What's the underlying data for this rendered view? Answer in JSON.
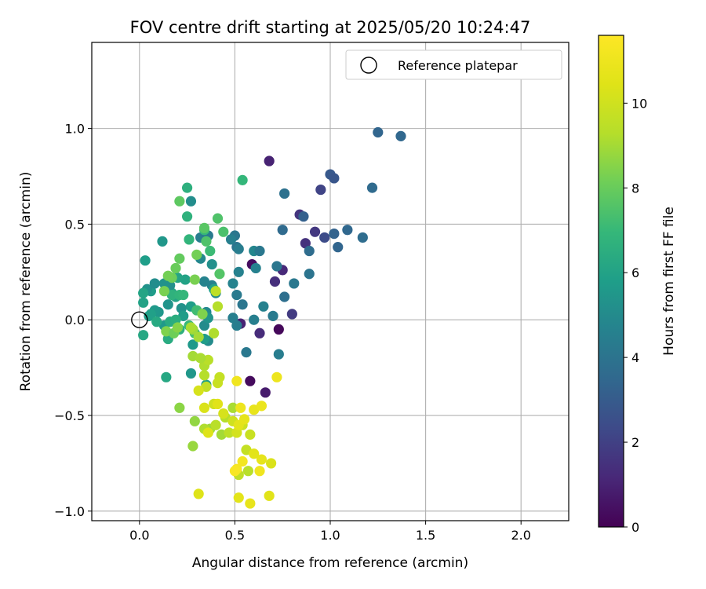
{
  "chart_data": {
    "type": "scatter",
    "title": "FOV centre drift starting at 2025/05/20 10:24:47",
    "xlabel": "Angular distance from reference (arcmin)",
    "ylabel": "Rotation from reference (arcmin)",
    "xlim": [
      -0.25,
      2.25
    ],
    "ylim": [
      -1.05,
      1.45
    ],
    "xticks": [
      0.0,
      0.5,
      1.0,
      1.5,
      2.0
    ],
    "xtick_labels": [
      "0.0",
      "0.5",
      "1.0",
      "1.5",
      "2.0"
    ],
    "yticks": [
      -1.0,
      -0.5,
      0.0,
      0.5,
      1.0
    ],
    "ytick_labels": [
      "−1.0",
      "−0.5",
      "0.0",
      "0.5",
      "1.0"
    ],
    "grid": true,
    "legend": {
      "placement": "top-right",
      "entries": [
        "Reference platepar"
      ]
    },
    "reference_point": {
      "x": 0.0,
      "y": 0.0,
      "label": "Reference platepar"
    },
    "colorbar": {
      "label": "Hours from first FF file",
      "range": [
        0,
        11.6
      ],
      "ticks": [
        0,
        2,
        4,
        6,
        8,
        10
      ],
      "tick_labels": [
        "0",
        "2",
        "4",
        "6",
        "8",
        "10"
      ],
      "colormap": "viridis"
    },
    "points": [
      {
        "x": 0.58,
        "y": -0.32,
        "h": 0.3
      },
      {
        "x": 0.73,
        "y": -0.05,
        "h": 0.2
      },
      {
        "x": 0.66,
        "y": -0.38,
        "h": 0.8
      },
      {
        "x": 0.59,
        "y": 0.29,
        "h": 0.4
      },
      {
        "x": 0.75,
        "y": 0.26,
        "h": 1.2
      },
      {
        "x": 0.53,
        "y": -0.02,
        "h": 1.0
      },
      {
        "x": 0.63,
        "y": -0.07,
        "h": 1.3
      },
      {
        "x": 0.71,
        "y": 0.2,
        "h": 1.4
      },
      {
        "x": 0.8,
        "y": 0.03,
        "h": 1.8
      },
      {
        "x": 0.68,
        "y": 0.83,
        "h": 1.0
      },
      {
        "x": 0.87,
        "y": 0.4,
        "h": 1.5
      },
      {
        "x": 0.92,
        "y": 0.46,
        "h": 1.7
      },
      {
        "x": 0.84,
        "y": 0.55,
        "h": 1.6
      },
      {
        "x": 0.95,
        "y": 0.68,
        "h": 2.1
      },
      {
        "x": 0.97,
        "y": 0.43,
        "h": 2.4
      },
      {
        "x": 1.0,
        "y": 0.76,
        "h": 2.9
      },
      {
        "x": 1.02,
        "y": 0.74,
        "h": 2.8
      },
      {
        "x": 1.25,
        "y": 0.98,
        "h": 3.4
      },
      {
        "x": 1.37,
        "y": 0.96,
        "h": 3.5
      },
      {
        "x": 1.22,
        "y": 0.69,
        "h": 3.6
      },
      {
        "x": 1.02,
        "y": 0.45,
        "h": 3.3
      },
      {
        "x": 1.09,
        "y": 0.47,
        "h": 3.5
      },
      {
        "x": 1.17,
        "y": 0.43,
        "h": 3.7
      },
      {
        "x": 1.04,
        "y": 0.38,
        "h": 3.4
      },
      {
        "x": 0.86,
        "y": 0.54,
        "h": 3.2
      },
      {
        "x": 0.76,
        "y": 0.66,
        "h": 3.9
      },
      {
        "x": 0.75,
        "y": 0.47,
        "h": 3.6
      },
      {
        "x": 0.89,
        "y": 0.36,
        "h": 3.7
      },
      {
        "x": 0.89,
        "y": 0.24,
        "h": 4.0
      },
      {
        "x": 0.81,
        "y": 0.19,
        "h": 4.2
      },
      {
        "x": 0.72,
        "y": 0.28,
        "h": 4.1
      },
      {
        "x": 0.76,
        "y": 0.12,
        "h": 3.8
      },
      {
        "x": 0.7,
        "y": 0.02,
        "h": 4.3
      },
      {
        "x": 0.73,
        "y": -0.18,
        "h": 4.4
      },
      {
        "x": 0.65,
        "y": 0.07,
        "h": 4.6
      },
      {
        "x": 0.6,
        "y": 0.0,
        "h": 4.5
      },
      {
        "x": 0.56,
        "y": -0.17,
        "h": 4.2
      },
      {
        "x": 0.54,
        "y": 0.08,
        "h": 4.1
      },
      {
        "x": 0.51,
        "y": 0.13,
        "h": 4.3
      },
      {
        "x": 0.49,
        "y": 0.01,
        "h": 4.5
      },
      {
        "x": 0.51,
        "y": -0.03,
        "h": 4.4
      },
      {
        "x": 0.52,
        "y": 0.25,
        "h": 4.6
      },
      {
        "x": 0.49,
        "y": 0.19,
        "h": 4.7
      },
      {
        "x": 0.6,
        "y": 0.36,
        "h": 4.8
      },
      {
        "x": 0.63,
        "y": 0.36,
        "h": 4.2
      },
      {
        "x": 0.61,
        "y": 0.27,
        "h": 4.6
      },
      {
        "x": 0.51,
        "y": 0.38,
        "h": 4.0
      },
      {
        "x": 0.5,
        "y": 0.44,
        "h": 4.1
      },
      {
        "x": 0.52,
        "y": 0.37,
        "h": 4.4
      },
      {
        "x": 0.48,
        "y": 0.42,
        "h": 4.5
      },
      {
        "x": 0.38,
        "y": 0.18,
        "h": 4.6
      },
      {
        "x": 0.34,
        "y": 0.2,
        "h": 4.7
      },
      {
        "x": 0.35,
        "y": 0.04,
        "h": 4.9
      },
      {
        "x": 0.34,
        "y": -0.03,
        "h": 5.0
      },
      {
        "x": 0.36,
        "y": -0.11,
        "h": 5.0
      },
      {
        "x": 0.32,
        "y": 0.32,
        "h": 4.9
      },
      {
        "x": 0.36,
        "y": 0.44,
        "h": 4.3
      },
      {
        "x": 0.32,
        "y": 0.43,
        "h": 4.4
      },
      {
        "x": 0.38,
        "y": 0.29,
        "h": 5.2
      },
      {
        "x": 0.36,
        "y": 0.01,
        "h": 5.4
      },
      {
        "x": 0.27,
        "y": 0.62,
        "h": 5.1
      },
      {
        "x": 0.27,
        "y": -0.28,
        "h": 5.5
      },
      {
        "x": 0.28,
        "y": -0.13,
        "h": 5.6
      },
      {
        "x": 0.34,
        "y": -0.1,
        "h": 5.7
      },
      {
        "x": 0.27,
        "y": 0.07,
        "h": 5.8
      },
      {
        "x": 0.4,
        "y": 0.14,
        "h": 5.0
      },
      {
        "x": 0.39,
        "y": 0.16,
        "h": 5.9
      },
      {
        "x": 0.35,
        "y": -0.34,
        "h": 5.8
      },
      {
        "x": 0.24,
        "y": 0.21,
        "h": 6.0
      },
      {
        "x": 0.22,
        "y": 0.06,
        "h": 5.3
      },
      {
        "x": 0.23,
        "y": 0.02,
        "h": 5.7
      },
      {
        "x": 0.19,
        "y": 0.12,
        "h": 6.0
      },
      {
        "x": 0.2,
        "y": 0.22,
        "h": 6.1
      },
      {
        "x": 0.17,
        "y": 0.14,
        "h": 6.2
      },
      {
        "x": 0.16,
        "y": 0.18,
        "h": 5.2
      },
      {
        "x": 0.15,
        "y": 0.08,
        "h": 5.4
      },
      {
        "x": 0.13,
        "y": 0.19,
        "h": 5.3
      },
      {
        "x": 0.12,
        "y": 0.41,
        "h": 5.5
      },
      {
        "x": 0.14,
        "y": -0.3,
        "h": 6.2
      },
      {
        "x": 0.15,
        "y": -0.1,
        "h": 6.4
      },
      {
        "x": 0.13,
        "y": -0.03,
        "h": 5.6
      },
      {
        "x": 0.1,
        "y": 0.04,
        "h": 5.5
      },
      {
        "x": 0.08,
        "y": 0.05,
        "h": 5.6
      },
      {
        "x": 0.06,
        "y": 0.15,
        "h": 5.7
      },
      {
        "x": 0.04,
        "y": 0.16,
        "h": 5.3
      },
      {
        "x": 0.03,
        "y": 0.31,
        "h": 5.8
      },
      {
        "x": 0.02,
        "y": 0.14,
        "h": 6.1
      },
      {
        "x": 0.02,
        "y": 0.09,
        "h": 6.0
      },
      {
        "x": 0.05,
        "y": 0.02,
        "h": 5.8
      },
      {
        "x": 0.06,
        "y": 0.03,
        "h": 5.9
      },
      {
        "x": 0.02,
        "y": -0.08,
        "h": 6.2
      },
      {
        "x": 0.08,
        "y": 0.19,
        "h": 5.1
      },
      {
        "x": 0.09,
        "y": -0.01,
        "h": 6.3
      },
      {
        "x": 0.16,
        "y": -0.01,
        "h": 6.4
      },
      {
        "x": 0.19,
        "y": 0.0,
        "h": 6.5
      },
      {
        "x": 0.21,
        "y": -0.05,
        "h": 6.6
      },
      {
        "x": 0.17,
        "y": 0.13,
        "h": 6.7
      },
      {
        "x": 0.21,
        "y": 0.13,
        "h": 6.8
      },
      {
        "x": 0.23,
        "y": 0.13,
        "h": 6.9
      },
      {
        "x": 0.25,
        "y": 0.69,
        "h": 6.6
      },
      {
        "x": 0.25,
        "y": 0.54,
        "h": 6.7
      },
      {
        "x": 0.26,
        "y": 0.42,
        "h": 6.8
      },
      {
        "x": 0.54,
        "y": 0.73,
        "h": 6.9
      },
      {
        "x": 0.34,
        "y": 0.47,
        "h": 7.0
      },
      {
        "x": 0.37,
        "y": 0.36,
        "h": 7.1
      },
      {
        "x": 0.3,
        "y": 0.05,
        "h": 7.2
      },
      {
        "x": 0.26,
        "y": -0.03,
        "h": 7.0
      },
      {
        "x": 0.29,
        "y": -0.07,
        "h": 7.3
      },
      {
        "x": 0.44,
        "y": 0.46,
        "h": 7.4
      },
      {
        "x": 0.41,
        "y": 0.53,
        "h": 7.5
      },
      {
        "x": 0.42,
        "y": 0.24,
        "h": 7.6
      },
      {
        "x": 0.34,
        "y": 0.48,
        "h": 7.7
      },
      {
        "x": 0.35,
        "y": 0.41,
        "h": 7.5
      },
      {
        "x": 0.21,
        "y": 0.62,
        "h": 7.8
      },
      {
        "x": 0.21,
        "y": 0.32,
        "h": 7.9
      },
      {
        "x": 0.19,
        "y": 0.27,
        "h": 8.0
      },
      {
        "x": 0.17,
        "y": 0.22,
        "h": 8.1
      },
      {
        "x": 0.15,
        "y": 0.23,
        "h": 8.2
      },
      {
        "x": 0.13,
        "y": 0.15,
        "h": 8.3
      },
      {
        "x": 0.14,
        "y": -0.06,
        "h": 8.4
      },
      {
        "x": 0.18,
        "y": -0.07,
        "h": 8.1
      },
      {
        "x": 0.2,
        "y": -0.04,
        "h": 8.5
      },
      {
        "x": 0.21,
        "y": -0.46,
        "h": 8.6
      },
      {
        "x": 0.29,
        "y": -0.53,
        "h": 8.7
      },
      {
        "x": 0.28,
        "y": -0.66,
        "h": 8.8
      },
      {
        "x": 0.29,
        "y": 0.21,
        "h": 8.3
      },
      {
        "x": 0.3,
        "y": 0.34,
        "h": 8.2
      },
      {
        "x": 0.33,
        "y": 0.03,
        "h": 8.4
      },
      {
        "x": 0.28,
        "y": -0.05,
        "h": 8.9
      },
      {
        "x": 0.31,
        "y": -0.09,
        "h": 9.0
      },
      {
        "x": 0.27,
        "y": -0.04,
        "h": 9.1
      },
      {
        "x": 0.34,
        "y": -0.24,
        "h": 9.2
      },
      {
        "x": 0.34,
        "y": -0.29,
        "h": 9.3
      },
      {
        "x": 0.36,
        "y": -0.21,
        "h": 9.4
      },
      {
        "x": 0.28,
        "y": -0.19,
        "h": 9.0
      },
      {
        "x": 0.32,
        "y": -0.2,
        "h": 9.1
      },
      {
        "x": 0.39,
        "y": -0.07,
        "h": 9.2
      },
      {
        "x": 0.41,
        "y": 0.07,
        "h": 9.3
      },
      {
        "x": 0.4,
        "y": 0.15,
        "h": 9.5
      },
      {
        "x": 0.35,
        "y": -0.35,
        "h": 9.6
      },
      {
        "x": 0.42,
        "y": -0.3,
        "h": 9.7
      },
      {
        "x": 0.41,
        "y": -0.33,
        "h": 9.8
      },
      {
        "x": 0.37,
        "y": -0.57,
        "h": 8.9
      },
      {
        "x": 0.34,
        "y": -0.57,
        "h": 9.2
      },
      {
        "x": 0.4,
        "y": -0.55,
        "h": 9.4
      },
      {
        "x": 0.43,
        "y": -0.6,
        "h": 9.0
      },
      {
        "x": 0.45,
        "y": -0.51,
        "h": 9.3
      },
      {
        "x": 0.47,
        "y": -0.59,
        "h": 9.5
      },
      {
        "x": 0.49,
        "y": -0.46,
        "h": 9.1
      },
      {
        "x": 0.52,
        "y": -0.81,
        "h": 9.6
      },
      {
        "x": 0.57,
        "y": -0.79,
        "h": 9.4
      },
      {
        "x": 0.56,
        "y": -0.68,
        "h": 9.7
      },
      {
        "x": 0.58,
        "y": -0.6,
        "h": 9.8
      },
      {
        "x": 0.54,
        "y": -0.55,
        "h": 9.9
      },
      {
        "x": 0.49,
        "y": -0.53,
        "h": 10.0
      },
      {
        "x": 0.51,
        "y": -0.59,
        "h": 10.1
      },
      {
        "x": 0.31,
        "y": -0.37,
        "h": 10.2
      },
      {
        "x": 0.39,
        "y": -0.44,
        "h": 10.0
      },
      {
        "x": 0.34,
        "y": -0.46,
        "h": 10.3
      },
      {
        "x": 0.36,
        "y": -0.59,
        "h": 10.4
      },
      {
        "x": 0.41,
        "y": -0.44,
        "h": 10.5
      },
      {
        "x": 0.44,
        "y": -0.49,
        "h": 10.2
      },
      {
        "x": 0.52,
        "y": -0.55,
        "h": 10.6
      },
      {
        "x": 0.55,
        "y": -0.52,
        "h": 10.7
      },
      {
        "x": 0.6,
        "y": -0.47,
        "h": 10.8
      },
      {
        "x": 0.64,
        "y": -0.45,
        "h": 10.9
      },
      {
        "x": 0.53,
        "y": -0.46,
        "h": 11.0
      },
      {
        "x": 0.51,
        "y": -0.32,
        "h": 11.1
      },
      {
        "x": 0.72,
        "y": -0.3,
        "h": 11.0
      },
      {
        "x": 0.69,
        "y": -0.75,
        "h": 10.3
      },
      {
        "x": 0.64,
        "y": -0.73,
        "h": 10.7
      },
      {
        "x": 0.6,
        "y": -0.7,
        "h": 10.6
      },
      {
        "x": 0.54,
        "y": -0.74,
        "h": 11.2
      },
      {
        "x": 0.51,
        "y": -0.78,
        "h": 11.3
      },
      {
        "x": 0.5,
        "y": -0.79,
        "h": 11.4
      },
      {
        "x": 0.63,
        "y": -0.79,
        "h": 11.1
      },
      {
        "x": 0.31,
        "y": -0.91,
        "h": 10.4
      },
      {
        "x": 0.52,
        "y": -0.93,
        "h": 10.6
      },
      {
        "x": 0.58,
        "y": -0.96,
        "h": 10.8
      },
      {
        "x": 0.68,
        "y": -0.92,
        "h": 10.5
      }
    ]
  }
}
